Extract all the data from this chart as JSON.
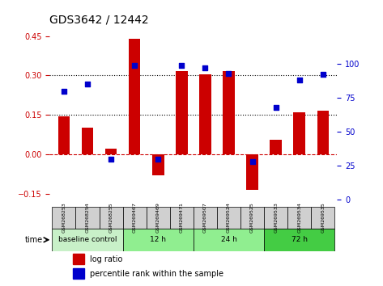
{
  "title": "GDS3642 / 12442",
  "categories": [
    "GSM268253",
    "GSM268254",
    "GSM268255",
    "GSM269467",
    "GSM269469",
    "GSM269471",
    "GSM269507",
    "GSM269524",
    "GSM269525",
    "GSM269533",
    "GSM269534",
    "GSM269535"
  ],
  "log_ratio": [
    0.145,
    0.1,
    0.02,
    0.44,
    -0.08,
    0.315,
    0.305,
    0.315,
    -0.135,
    0.055,
    0.16,
    0.165
  ],
  "percentile_rank": [
    80,
    85,
    30,
    99,
    30,
    99,
    97,
    93,
    28,
    68,
    88,
    92
  ],
  "bar_color": "#cc0000",
  "dot_color": "#0000cc",
  "ylim_left": [
    -0.2,
    0.5
  ],
  "yticks_left": [
    -0.15,
    0.0,
    0.15,
    0.3,
    0.45
  ],
  "ylim_right": [
    -5,
    130
  ],
  "yticks_right": [
    0,
    25,
    50,
    75,
    100
  ],
  "hline_y": [
    0.15,
    0.3
  ],
  "zero_line_color": "#cc0000",
  "zero_line_style": "--",
  "hline_color": "black",
  "hline_style": ":",
  "groups": [
    {
      "label": "baseline control",
      "start": 0,
      "end": 3,
      "color": "#c8f0c8"
    },
    {
      "label": "12 h",
      "start": 3,
      "end": 6,
      "color": "#90ee90"
    },
    {
      "label": "24 h",
      "start": 6,
      "end": 9,
      "color": "#90ee90"
    },
    {
      "label": "72 h",
      "start": 9,
      "end": 12,
      "color": "#44cc44"
    }
  ],
  "time_label": "time",
  "legend_log_ratio": "log ratio",
  "legend_percentile": "percentile rank within the sample",
  "bg_color": "#ffffff",
  "grid_color": "#cccccc",
  "tick_label_color_left": "#cc0000",
  "tick_label_color_right": "#0000cc",
  "bar_width": 0.5
}
